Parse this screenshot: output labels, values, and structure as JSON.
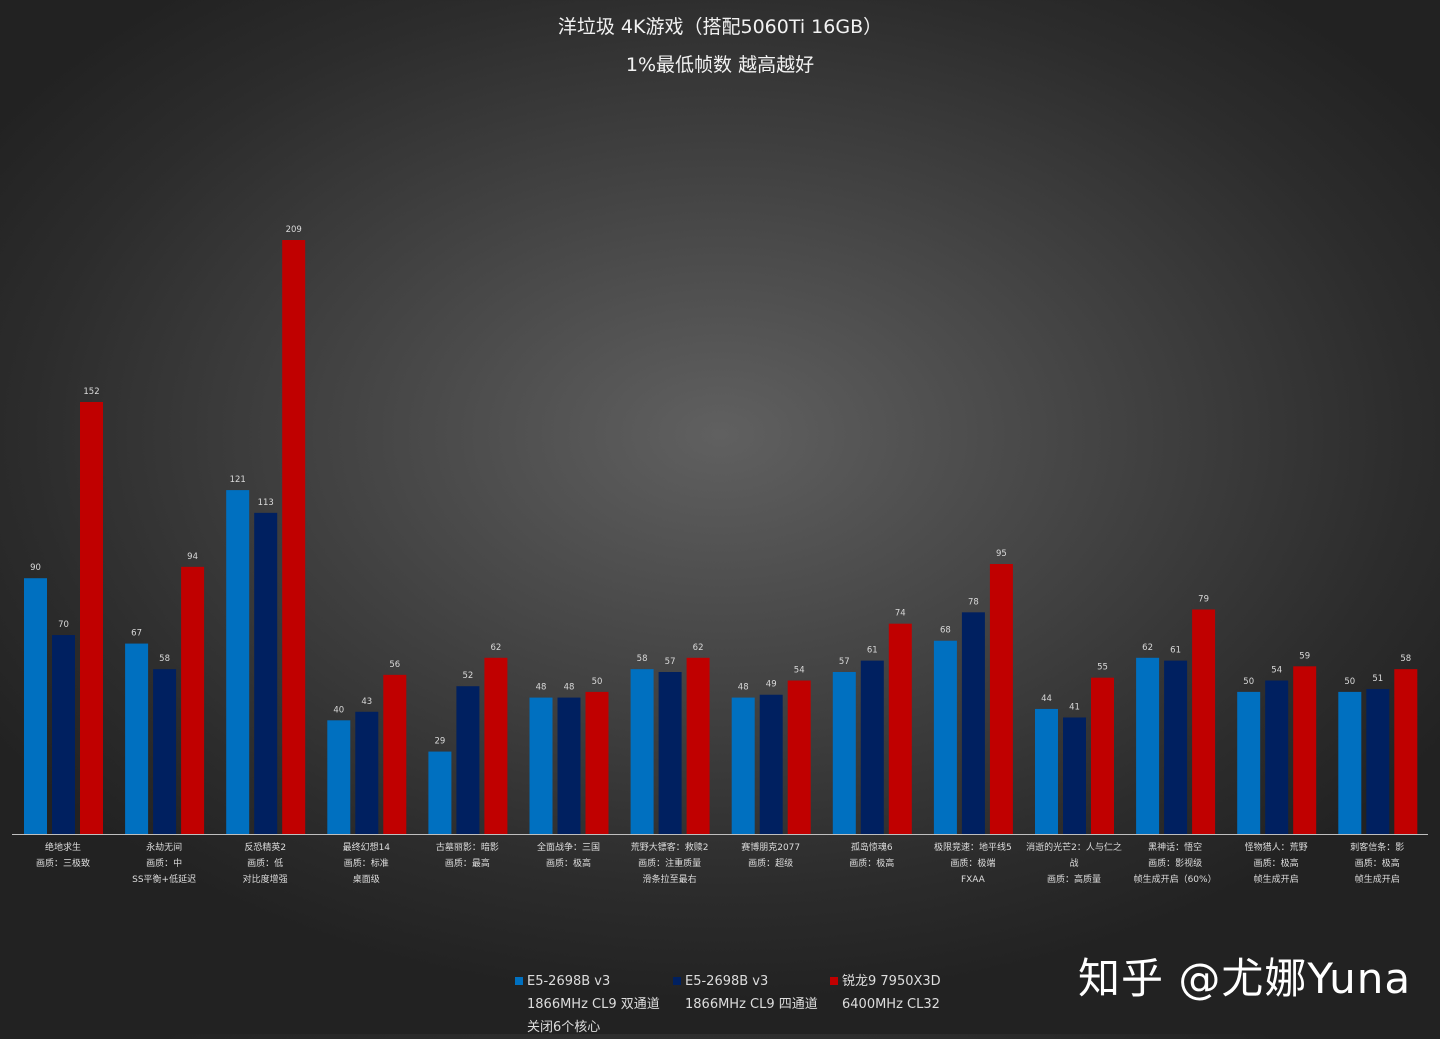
{
  "chart_data": {
    "type": "bar",
    "title": "洋垃圾 4K游戏（搭配5060Ti 16GB）",
    "subtitle": "1%最低帧数 越高越好",
    "categories": [
      [
        "绝地求生",
        "画质：三极致"
      ],
      [
        "永劫无间",
        "画质：中",
        "SS平衡+低延迟"
      ],
      [
        "反恐精英2",
        "画质：低",
        "对比度增强"
      ],
      [
        "最终幻想14",
        "画质：标准",
        "桌面级"
      ],
      [
        "古墓丽影：暗影",
        "画质：最高"
      ],
      [
        "全面战争：三国",
        "画质：极高"
      ],
      [
        "荒野大镖客：救赎2",
        "画质：注重质量",
        "滑条拉至最右"
      ],
      [
        "赛博朋克2077",
        "画质：超级"
      ],
      [
        "孤岛惊魂6",
        "画质：极高"
      ],
      [
        "极限竞速：地平线5",
        "画质：极端",
        "FXAA"
      ],
      [
        "消逝的光芒2：人与仁之战",
        "画质：高质量"
      ],
      [
        "黑神话：悟空",
        "画质：影视级",
        "帧生成开启（60%）"
      ],
      [
        "怪物猎人：荒野",
        "画质：极高",
        "帧生成开启"
      ],
      [
        "刺客信条：影",
        "画质：极高",
        "帧生成开启"
      ]
    ],
    "series": [
      {
        "name": "E5-2698B v3",
        "detail": [
          "1866MHz CL9 双通道",
          "关闭6个核心"
        ],
        "color": "#0070c0",
        "values": [
          90,
          67,
          121,
          40,
          29,
          48,
          58,
          48,
          57,
          68,
          44,
          62,
          50,
          50
        ]
      },
      {
        "name": "E5-2698B v3",
        "detail": [
          "1866MHz CL9 四通道"
        ],
        "color": "#002060",
        "values": [
          70,
          58,
          113,
          43,
          52,
          48,
          57,
          49,
          61,
          78,
          41,
          61,
          54,
          51
        ]
      },
      {
        "name": "锐龙9 7950X3D",
        "detail": [
          "6400MHz CL32"
        ],
        "color": "#c00000",
        "values": [
          152,
          94,
          209,
          56,
          62,
          50,
          62,
          54,
          74,
          95,
          55,
          79,
          59,
          58
        ]
      }
    ],
    "ylim": [
      0,
      209
    ],
    "grid": false,
    "legend_position": "bottom"
  },
  "watermark": "知乎 @尤娜Yuna"
}
